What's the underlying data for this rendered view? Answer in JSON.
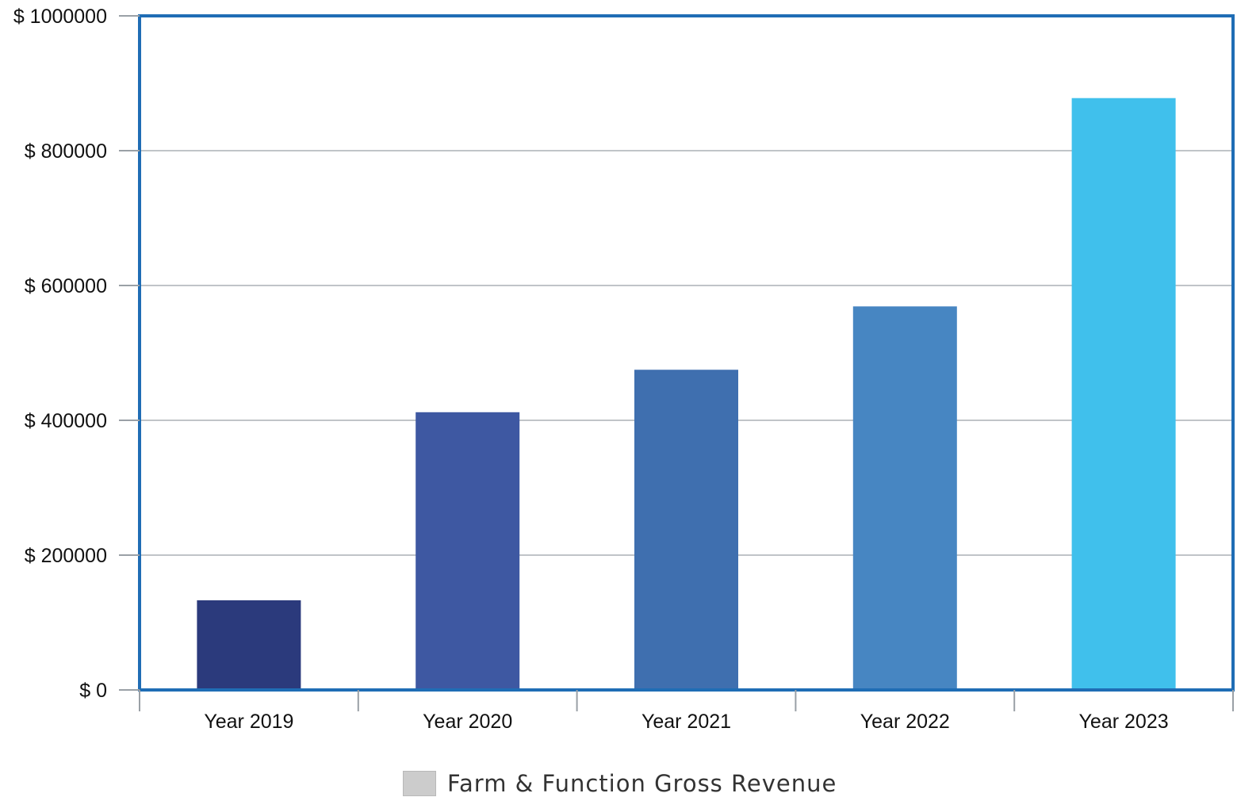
{
  "chart_data": {
    "type": "bar",
    "title": "",
    "xlabel": "",
    "ylabel": "",
    "categories": [
      "Year 2019",
      "Year 2020",
      "Year 2021",
      "Year 2022",
      "Year 2023"
    ],
    "series": [
      {
        "name": "Farm & Function Gross Revenue",
        "values": [
          133000,
          412000,
          475000,
          569000,
          878000
        ],
        "colors": [
          "#2b3a7c",
          "#3e58a2",
          "#3f6faf",
          "#4786c2",
          "#40c0ec"
        ]
      }
    ],
    "ylim": [
      0,
      1000000
    ],
    "yticks": [
      0,
      200000,
      400000,
      600000,
      800000,
      1000000
    ],
    "ytick_prefix": "$ ",
    "grid": true,
    "legend": {
      "position": "bottom",
      "label": "Farm & Function Gross Revenue",
      "swatch_color": "#cccccc"
    },
    "frame_color": "#1f6db5",
    "grid_color": "#c0c4c8"
  }
}
